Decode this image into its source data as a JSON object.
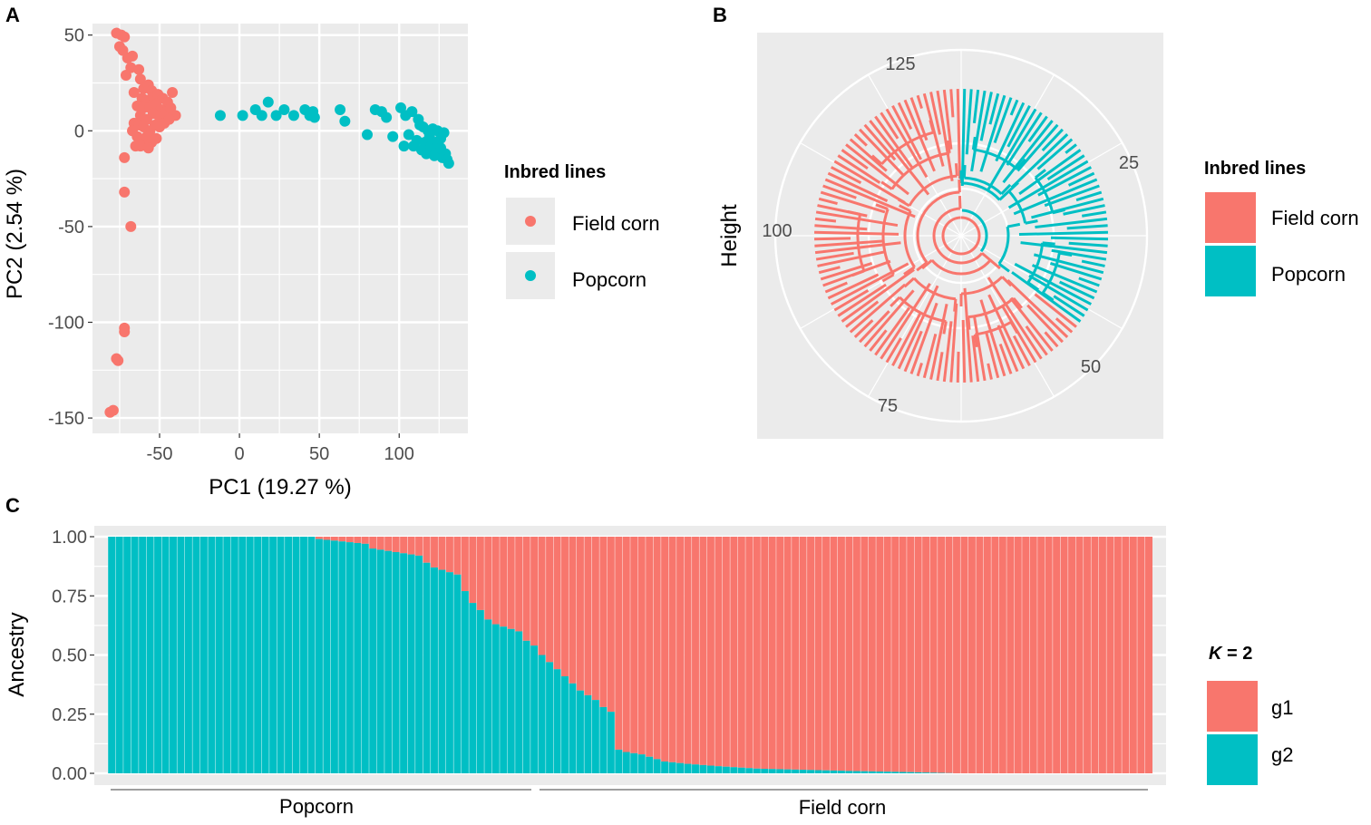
{
  "figure": {
    "panel_labels": [
      "A",
      "B",
      "C"
    ]
  },
  "chart_data": [
    {
      "panel": "A",
      "type": "scatter",
      "xlabel": "PC1 (19.27 %)",
      "ylabel": "PC2 (2.54 %)",
      "xlim": [
        -92,
        143
      ],
      "ylim": [
        -158,
        56
      ],
      "xticks": [
        -50,
        0,
        50,
        100
      ],
      "yticks": [
        50,
        0,
        -50,
        -100,
        -150
      ],
      "grid": true,
      "legend_title": "Inbred lines",
      "legend_position": "right",
      "series": [
        {
          "name": "Field corn",
          "color": "#F8766D",
          "points": [
            [
              -77,
              51
            ],
            [
              -74,
              50
            ],
            [
              -72,
              49
            ],
            [
              -75,
              44
            ],
            [
              -73,
              42
            ],
            [
              -70,
              38
            ],
            [
              -67,
              39
            ],
            [
              -68,
              33
            ],
            [
              -63,
              32
            ],
            [
              -71,
              29
            ],
            [
              -62,
              27
            ],
            [
              -60,
              22
            ],
            [
              -57,
              24
            ],
            [
              -55,
              21
            ],
            [
              -66,
              20
            ],
            [
              -61,
              17
            ],
            [
              -58,
              16
            ],
            [
              -54,
              18
            ],
            [
              -51,
              19
            ],
            [
              -48,
              17
            ],
            [
              -45,
              15
            ],
            [
              -42,
              20
            ],
            [
              -64,
              13
            ],
            [
              -60,
              12
            ],
            [
              -56,
              12
            ],
            [
              -52,
              14
            ],
            [
              -49,
              11
            ],
            [
              -46,
              10
            ],
            [
              -43,
              12
            ],
            [
              -40,
              8
            ],
            [
              -62,
              8
            ],
            [
              -58,
              6
            ],
            [
              -54,
              9
            ],
            [
              -50,
              7
            ],
            [
              -47,
              4
            ],
            [
              -44,
              6
            ],
            [
              -66,
              4
            ],
            [
              -63,
              3
            ],
            [
              -60,
              2
            ],
            [
              -56,
              0
            ],
            [
              -53,
              3
            ],
            [
              -50,
              2
            ],
            [
              -67,
              0
            ],
            [
              -64,
              -3
            ],
            [
              -61,
              -5
            ],
            [
              -58,
              -3
            ],
            [
              -55,
              -6
            ],
            [
              -52,
              -4
            ],
            [
              -65,
              -8
            ],
            [
              -62,
              -8
            ],
            [
              -57,
              -9
            ],
            [
              -72,
              -14
            ],
            [
              -72,
              -32
            ],
            [
              -68,
              -50
            ],
            [
              -72,
              -103
            ],
            [
              -72,
              -105
            ],
            [
              -77,
              -119
            ],
            [
              -76,
              -120
            ],
            [
              -81,
              -147
            ],
            [
              -79,
              -146
            ]
          ]
        },
        {
          "name": "Popcorn",
          "color": "#00BFC4",
          "points": [
            [
              -12,
              8
            ],
            [
              2,
              8
            ],
            [
              10,
              11
            ],
            [
              14,
              8
            ],
            [
              18,
              15
            ],
            [
              23,
              8
            ],
            [
              28,
              11
            ],
            [
              34,
              8
            ],
            [
              41,
              11
            ],
            [
              44,
              8
            ],
            [
              46,
              10
            ],
            [
              47,
              7
            ],
            [
              63,
              11
            ],
            [
              66,
              5
            ],
            [
              80,
              -2
            ],
            [
              85,
              11
            ],
            [
              89,
              10
            ],
            [
              92,
              7
            ],
            [
              96,
              -3
            ],
            [
              101,
              12
            ],
            [
              103,
              -8
            ],
            [
              104,
              8
            ],
            [
              106,
              -2
            ],
            [
              108,
              10
            ],
            [
              109,
              -8
            ],
            [
              111,
              -5
            ],
            [
              112,
              6
            ],
            [
              113,
              3
            ],
            [
              114,
              -10
            ],
            [
              115,
              2
            ],
            [
              116,
              -6
            ],
            [
              117,
              -12
            ],
            [
              118,
              0
            ],
            [
              119,
              -3
            ],
            [
              120,
              -8
            ],
            [
              121,
              1
            ],
            [
              122,
              -13
            ],
            [
              123,
              -6
            ],
            [
              124,
              0
            ],
            [
              125,
              -11
            ],
            [
              126,
              -4
            ],
            [
              127,
              -14
            ],
            [
              128,
              -1
            ],
            [
              129,
              -12
            ],
            [
              130,
              -15
            ],
            [
              131,
              -17
            ],
            [
              124,
              -7
            ],
            [
              126,
              -9
            ]
          ]
        }
      ]
    },
    {
      "panel": "B",
      "type": "dendrogram",
      "ylabel": "Height",
      "angular_ticks": [
        "25",
        "50",
        "75",
        "100",
        "125"
      ],
      "n_leaves": 136,
      "legend_title": "Inbred lines",
      "legend_position": "right",
      "groups": [
        {
          "name": "Field corn",
          "color": "#F8766D",
          "leaves": 88
        },
        {
          "name": "Popcorn",
          "color": "#00BFC4",
          "leaves": 48
        }
      ]
    },
    {
      "panel": "C",
      "type": "bar",
      "stacked": true,
      "ylabel": "Ancestry",
      "ylim": [
        0,
        1
      ],
      "yticks": [
        "1.00",
        "0.75",
        "0.50",
        "0.25",
        "0.00"
      ],
      "n_individuals": 136,
      "legend_title_italic": "K",
      "legend_title_rest": " = 2",
      "legend_position": "right",
      "group_labels": [
        {
          "name": "Popcorn",
          "from": 0,
          "to": 55
        },
        {
          "name": "Field corn",
          "from": 56,
          "to": 135
        }
      ],
      "series": [
        {
          "name": "g1",
          "color": "#F8766D"
        },
        {
          "name": "g2",
          "color": "#00BFC4"
        }
      ],
      "g2_fraction_profile": [
        [
          0,
          1.0
        ],
        [
          26,
          1.0
        ],
        [
          27,
          0.99
        ],
        [
          33,
          0.97
        ],
        [
          34,
          0.95
        ],
        [
          40,
          0.92
        ],
        [
          41,
          0.89
        ],
        [
          42,
          0.87
        ],
        [
          43,
          0.86
        ],
        [
          44,
          0.85
        ],
        [
          45,
          0.84
        ],
        [
          46,
          0.77
        ],
        [
          47,
          0.72
        ],
        [
          48,
          0.69
        ],
        [
          49,
          0.65
        ],
        [
          50,
          0.63
        ],
        [
          51,
          0.62
        ],
        [
          52,
          0.61
        ],
        [
          53,
          0.6
        ],
        [
          54,
          0.56
        ],
        [
          55,
          0.54
        ],
        [
          56,
          0.5
        ],
        [
          57,
          0.47
        ],
        [
          58,
          0.44
        ],
        [
          59,
          0.41
        ],
        [
          60,
          0.38
        ],
        [
          61,
          0.35
        ],
        [
          62,
          0.33
        ],
        [
          63,
          0.31
        ],
        [
          64,
          0.28
        ],
        [
          65,
          0.26
        ],
        [
          66,
          0.1
        ],
        [
          67,
          0.09
        ],
        [
          69,
          0.08
        ],
        [
          70,
          0.07
        ],
        [
          71,
          0.06
        ],
        [
          72,
          0.05
        ],
        [
          75,
          0.04
        ],
        [
          79,
          0.03
        ],
        [
          84,
          0.02
        ],
        [
          96,
          0.01
        ],
        [
          104,
          0.005
        ],
        [
          110,
          0.0
        ],
        [
          135,
          0.0
        ]
      ]
    }
  ]
}
